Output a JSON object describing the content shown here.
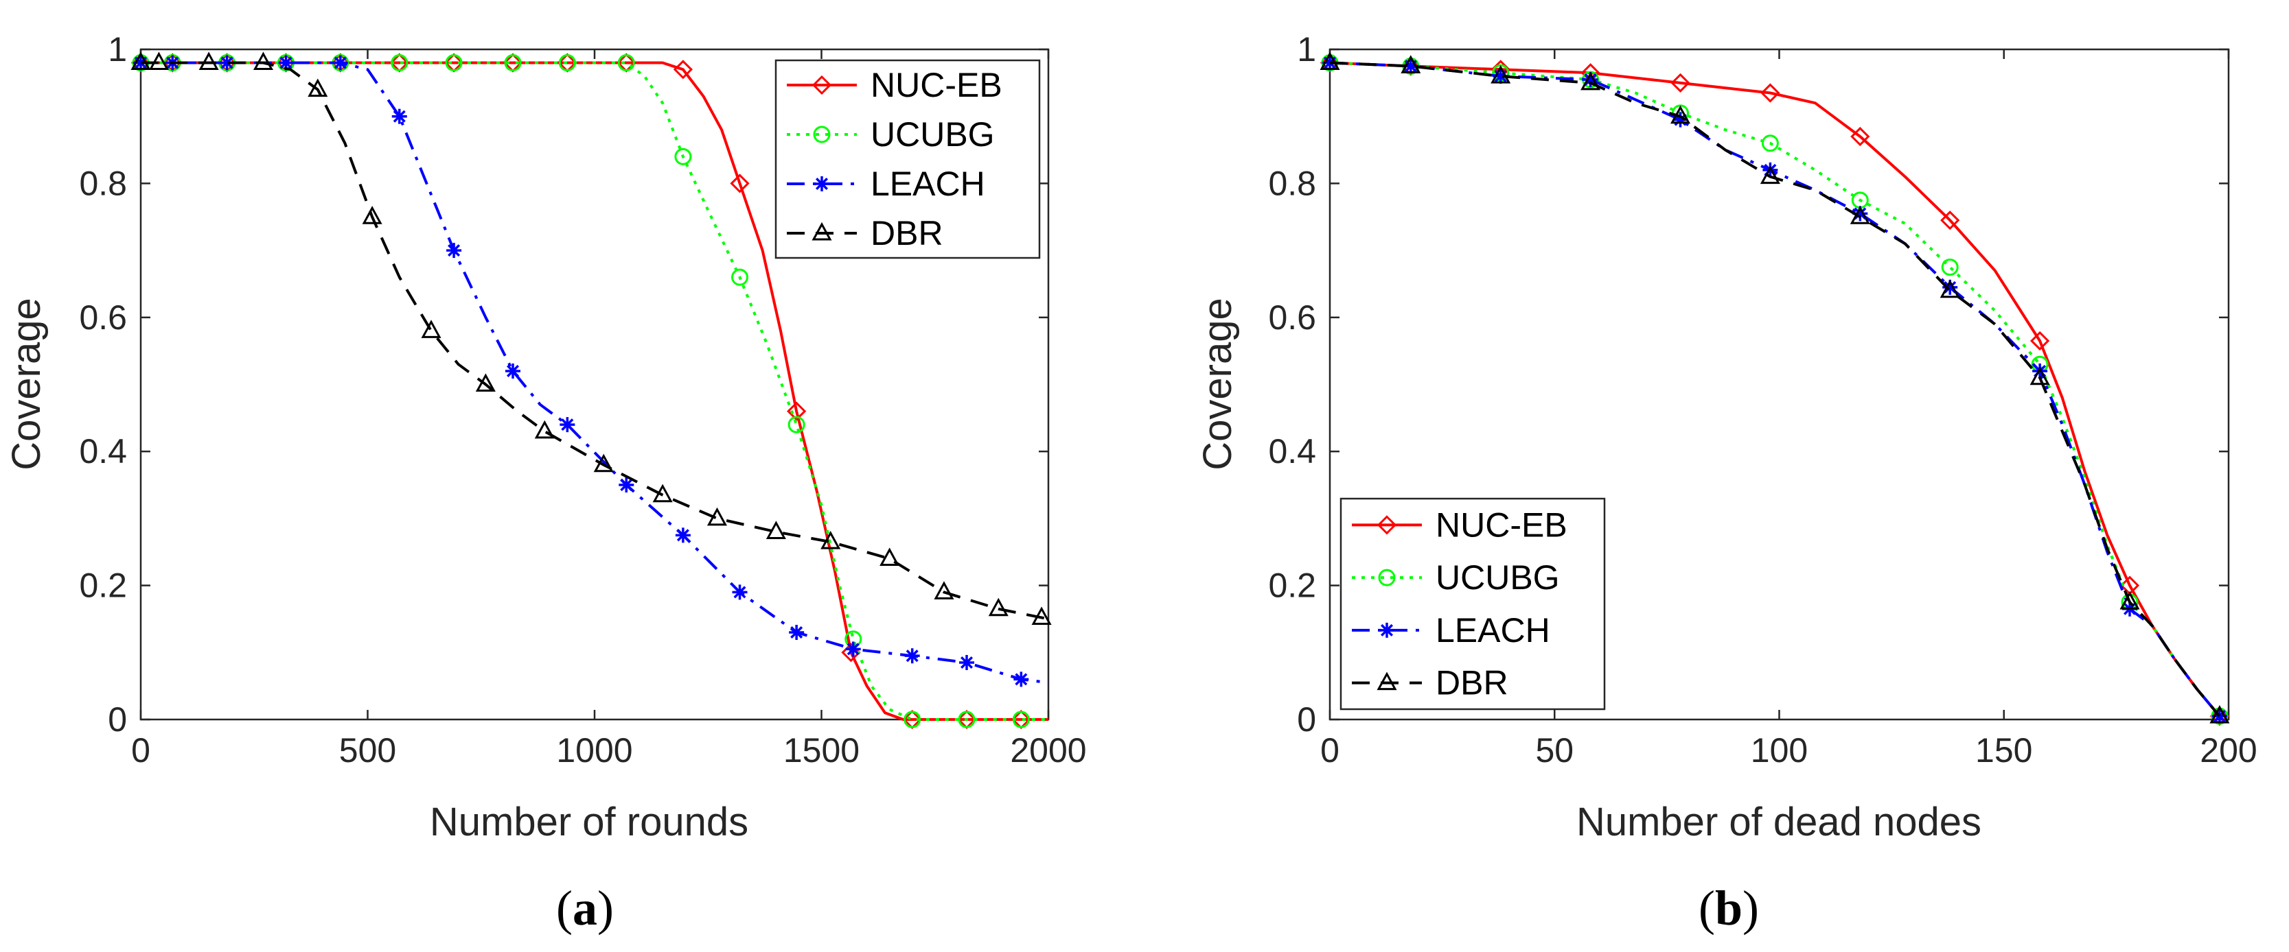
{
  "chart_data": [
    {
      "type": "line",
      "caption": "a",
      "xlabel": "Number of rounds",
      "ylabel": "Coverage",
      "xlim": [
        0,
        2000
      ],
      "ylim": [
        0,
        1
      ],
      "xticks": [
        0,
        500,
        1000,
        1500,
        2000
      ],
      "yticks": [
        0,
        0.2,
        0.4,
        0.6,
        0.8,
        1
      ],
      "legend_position": "top-right",
      "series": [
        {
          "name": "NUC-EB",
          "color": "#ff0000",
          "dash": "solid",
          "marker": "diamond",
          "x": [
            0,
            70,
            190,
            320,
            440,
            570,
            690,
            820,
            940,
            1070,
            1150,
            1195,
            1240,
            1280,
            1320,
            1370,
            1410,
            1445,
            1490,
            1530,
            1565,
            1600,
            1640,
            1680,
            1700,
            1820,
            1940,
            2000
          ],
          "y": [
            0.98,
            0.98,
            0.98,
            0.98,
            0.98,
            0.98,
            0.98,
            0.98,
            0.98,
            0.98,
            0.98,
            0.97,
            0.93,
            0.88,
            0.8,
            0.7,
            0.58,
            0.46,
            0.34,
            0.22,
            0.1,
            0.05,
            0.01,
            0.0,
            0.0,
            0.0,
            0.0,
            0.0
          ],
          "markers_x": [
            0,
            70,
            190,
            320,
            440,
            570,
            690,
            820,
            940,
            1070,
            1195,
            1320,
            1445,
            1565,
            1700,
            1820,
            1940
          ]
        },
        {
          "name": "UCUBG",
          "color": "#00ff00",
          "dash": "dot",
          "marker": "circle",
          "x": [
            0,
            70,
            190,
            320,
            440,
            570,
            690,
            820,
            940,
            1070,
            1110,
            1150,
            1195,
            1250,
            1320,
            1380,
            1445,
            1500,
            1540,
            1570,
            1610,
            1650,
            1700,
            1820,
            1940,
            2000
          ],
          "y": [
            0.98,
            0.98,
            0.98,
            0.98,
            0.98,
            0.98,
            0.98,
            0.98,
            0.98,
            0.98,
            0.96,
            0.92,
            0.84,
            0.76,
            0.66,
            0.56,
            0.44,
            0.32,
            0.2,
            0.12,
            0.05,
            0.015,
            0.0,
            0.0,
            0.0,
            0.0
          ],
          "markers_x": [
            0,
            70,
            190,
            320,
            440,
            570,
            690,
            820,
            940,
            1070,
            1195,
            1320,
            1445,
            1570,
            1700,
            1820,
            1940
          ]
        },
        {
          "name": "LEACH",
          "color": "#0000ff",
          "dash": "dashdot",
          "marker": "asterisk",
          "x": [
            0,
            70,
            190,
            320,
            440,
            500,
            570,
            630,
            690,
            760,
            820,
            880,
            940,
            1070,
            1195,
            1320,
            1445,
            1570,
            1700,
            1820,
            1940,
            2000
          ],
          "y": [
            0.98,
            0.98,
            0.98,
            0.98,
            0.98,
            0.97,
            0.9,
            0.8,
            0.7,
            0.6,
            0.52,
            0.47,
            0.44,
            0.35,
            0.275,
            0.19,
            0.13,
            0.105,
            0.095,
            0.085,
            0.06,
            0.055
          ],
          "markers_x": [
            0,
            70,
            190,
            320,
            440,
            570,
            690,
            820,
            940,
            1070,
            1195,
            1320,
            1445,
            1570,
            1700,
            1820,
            1940
          ]
        },
        {
          "name": "DBR",
          "color": "#000000",
          "dash": "dash",
          "marker": "triangle",
          "x": [
            0,
            40,
            150,
            270,
            330,
            390,
            450,
            510,
            570,
            640,
            700,
            760,
            830,
            890,
            1020,
            1150,
            1270,
            1400,
            1520,
            1650,
            1770,
            1890,
            2000
          ],
          "y": [
            0.98,
            0.98,
            0.98,
            0.98,
            0.97,
            0.94,
            0.86,
            0.75,
            0.66,
            0.58,
            0.53,
            0.5,
            0.46,
            0.43,
            0.38,
            0.335,
            0.3,
            0.28,
            0.265,
            0.24,
            0.19,
            0.165,
            0.15
          ],
          "markers_x": [
            0,
            40,
            150,
            270,
            390,
            510,
            640,
            760,
            890,
            1020,
            1150,
            1270,
            1400,
            1520,
            1650,
            1770,
            1890,
            1985
          ]
        }
      ]
    },
    {
      "type": "line",
      "caption": "b",
      "xlabel": "Number of dead nodes",
      "ylabel": "Coverage",
      "xlim": [
        0,
        200
      ],
      "ylim": [
        0,
        1
      ],
      "xticks": [
        0,
        50,
        100,
        150,
        200
      ],
      "yticks": [
        0,
        0.2,
        0.4,
        0.6,
        0.8,
        1
      ],
      "legend_position": "bottom-left",
      "series": [
        {
          "name": "NUC-EB",
          "color": "#ff0000",
          "dash": "solid",
          "marker": "diamond",
          "x": [
            0,
            18,
            38,
            58,
            78,
            98,
            108,
            118,
            128,
            138,
            148,
            158,
            163,
            168,
            173,
            178,
            183,
            188,
            193,
            198
          ],
          "y": [
            0.98,
            0.975,
            0.97,
            0.965,
            0.95,
            0.935,
            0.92,
            0.87,
            0.81,
            0.745,
            0.67,
            0.565,
            0.48,
            0.37,
            0.275,
            0.2,
            0.14,
            0.09,
            0.045,
            0.005
          ],
          "markers_x": [
            0,
            18,
            38,
            58,
            78,
            98,
            118,
            138,
            158,
            178,
            198
          ]
        },
        {
          "name": "UCUBG",
          "color": "#00ff00",
          "dash": "dot",
          "marker": "circle",
          "x": [
            0,
            18,
            38,
            58,
            68,
            78,
            88,
            98,
            108,
            118,
            128,
            138,
            148,
            158,
            163,
            168,
            173,
            178,
            183,
            188,
            193,
            198
          ],
          "y": [
            0.98,
            0.975,
            0.965,
            0.955,
            0.935,
            0.905,
            0.88,
            0.86,
            0.82,
            0.775,
            0.74,
            0.675,
            0.61,
            0.53,
            0.45,
            0.36,
            0.26,
            0.175,
            0.14,
            0.09,
            0.045,
            0.005
          ],
          "markers_x": [
            0,
            18,
            38,
            58,
            78,
            98,
            118,
            138,
            158,
            178,
            198
          ]
        },
        {
          "name": "LEACH",
          "color": "#0000ff",
          "dash": "dashdot",
          "marker": "asterisk",
          "x": [
            0,
            18,
            38,
            58,
            68,
            78,
            88,
            98,
            108,
            118,
            128,
            138,
            148,
            158,
            163,
            168,
            173,
            178,
            183,
            188,
            193,
            198
          ],
          "y": [
            0.98,
            0.975,
            0.96,
            0.955,
            0.925,
            0.895,
            0.85,
            0.82,
            0.79,
            0.755,
            0.71,
            0.645,
            0.59,
            0.52,
            0.44,
            0.35,
            0.25,
            0.165,
            0.14,
            0.09,
            0.045,
            0.005
          ],
          "markers_x": [
            0,
            18,
            38,
            58,
            78,
            98,
            118,
            138,
            158,
            178,
            198
          ]
        },
        {
          "name": "DBR",
          "color": "#000000",
          "dash": "dash",
          "marker": "triangle",
          "x": [
            0,
            18,
            38,
            58,
            68,
            78,
            88,
            98,
            108,
            118,
            128,
            138,
            148,
            158,
            163,
            168,
            173,
            178,
            183,
            188,
            193,
            198
          ],
          "y": [
            0.98,
            0.975,
            0.96,
            0.95,
            0.92,
            0.9,
            0.85,
            0.81,
            0.79,
            0.75,
            0.71,
            0.64,
            0.59,
            0.51,
            0.43,
            0.35,
            0.255,
            0.175,
            0.14,
            0.09,
            0.045,
            0.005
          ],
          "markers_x": [
            0,
            18,
            38,
            58,
            78,
            98,
            118,
            138,
            158,
            178,
            198
          ]
        }
      ]
    }
  ]
}
